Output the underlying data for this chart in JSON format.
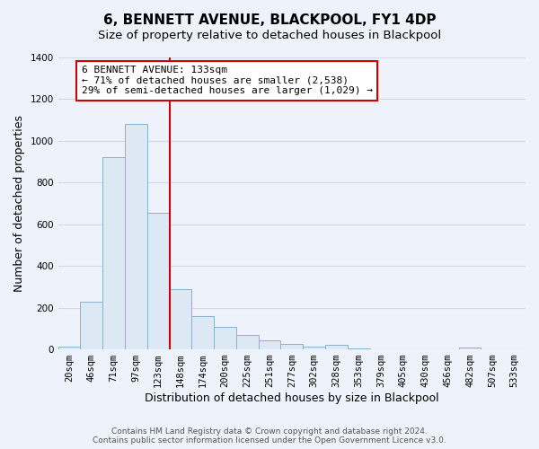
{
  "title": "6, BENNETT AVENUE, BLACKPOOL, FY1 4DP",
  "subtitle": "Size of property relative to detached houses in Blackpool",
  "xlabel": "Distribution of detached houses by size in Blackpool",
  "ylabel": "Number of detached properties",
  "bar_labels": [
    "20sqm",
    "46sqm",
    "71sqm",
    "97sqm",
    "123sqm",
    "148sqm",
    "174sqm",
    "200sqm",
    "225sqm",
    "251sqm",
    "277sqm",
    "302sqm",
    "328sqm",
    "353sqm",
    "379sqm",
    "405sqm",
    "430sqm",
    "456sqm",
    "482sqm",
    "507sqm",
    "533sqm"
  ],
  "bar_values": [
    15,
    228,
    920,
    1080,
    655,
    290,
    158,
    107,
    70,
    42,
    25,
    14,
    20,
    5,
    0,
    0,
    0,
    0,
    10,
    0,
    0
  ],
  "bar_color": "#dce9f5",
  "bar_edge_color": "#8ab0cc",
  "property_line_color": "#cc0000",
  "annotation_title": "6 BENNETT AVENUE: 133sqm",
  "annotation_line1": "← 71% of detached houses are smaller (2,538)",
  "annotation_line2": "29% of semi-detached houses are larger (1,029) →",
  "annotation_box_color": "#ffffff",
  "annotation_box_edge_color": "#cc0000",
  "ylim": [
    0,
    1400
  ],
  "yticks": [
    0,
    200,
    400,
    600,
    800,
    1000,
    1200,
    1400
  ],
  "footer_line1": "Contains HM Land Registry data © Crown copyright and database right 2024.",
  "footer_line2": "Contains public sector information licensed under the Open Government Licence v3.0.",
  "background_color": "#eef2fa",
  "plot_bg_color": "#eef2fa",
  "grid_color": "#d0d8e8",
  "title_fontsize": 11,
  "subtitle_fontsize": 9.5,
  "axis_label_fontsize": 9,
  "tick_fontsize": 7.5,
  "footer_fontsize": 6.5
}
